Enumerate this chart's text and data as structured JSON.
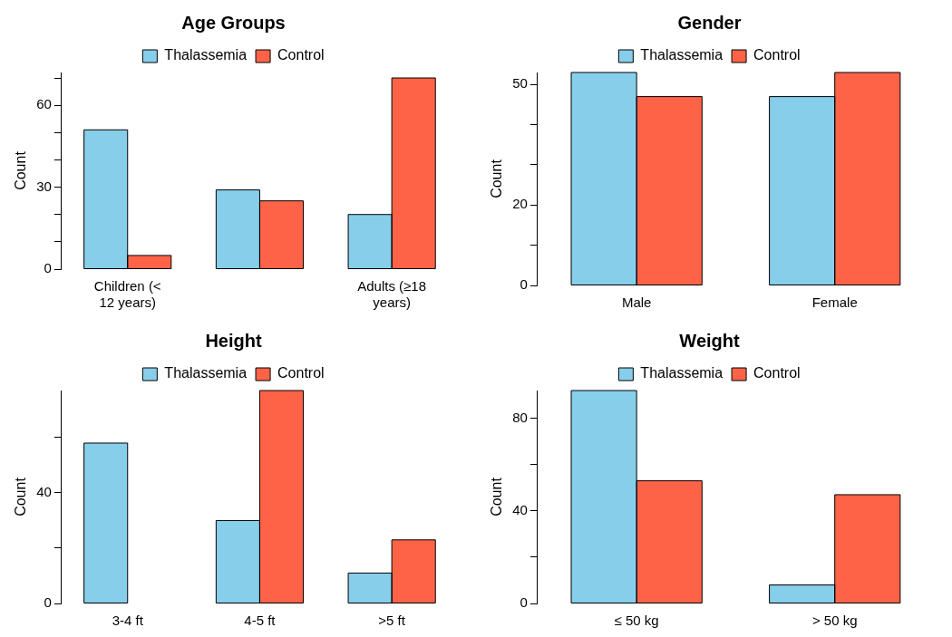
{
  "chart_data": [
    {
      "type": "bar",
      "title": "Age Groups",
      "ylabel": "Count",
      "categories": [
        "Children (< 12 years)",
        null,
        "Adults (≥18 years)"
      ],
      "series": [
        {
          "name": "Thalassemia",
          "color": "#87ceeb",
          "values": [
            51,
            29,
            20
          ]
        },
        {
          "name": "Control",
          "color": "#ff6347",
          "values": [
            5,
            25,
            70
          ]
        }
      ],
      "ylim": [
        0,
        72
      ],
      "yticks": [
        0,
        {
          "value": 10,
          "label": null
        },
        {
          "value": 20,
          "label": null
        },
        30,
        {
          "value": 40,
          "label": null
        },
        {
          "value": 50,
          "label": null
        },
        60,
        {
          "value": 70,
          "label": null
        }
      ],
      "legend": "top"
    },
    {
      "type": "bar",
      "title": "Gender",
      "ylabel": "Count",
      "categories": [
        "Male",
        "Female"
      ],
      "series": [
        {
          "name": "Thalassemia",
          "color": "#87ceeb",
          "values": [
            53,
            47
          ]
        },
        {
          "name": "Control",
          "color": "#ff6347",
          "values": [
            47,
            53
          ]
        }
      ],
      "ylim": [
        0,
        53
      ],
      "yticks": [
        0,
        {
          "value": 10,
          "label": null
        },
        20,
        {
          "value": 30,
          "label": null
        },
        {
          "value": 40,
          "label": null
        },
        50
      ],
      "legend": "top"
    },
    {
      "type": "bar",
      "title": "Height",
      "ylabel": "Count",
      "categories": [
        "3-4 ft",
        "4-5 ft",
        ">5 ft"
      ],
      "series": [
        {
          "name": "Thalassemia",
          "color": "#87ceeb",
          "values": [
            58,
            30,
            11
          ]
        },
        {
          "name": "Control",
          "color": "#ff6347",
          "values": [
            0,
            77,
            23
          ]
        }
      ],
      "ylim": [
        0,
        77
      ],
      "yticks": [
        0,
        {
          "value": 20,
          "label": null
        },
        40,
        {
          "value": 60,
          "label": null
        }
      ],
      "legend": "top"
    },
    {
      "type": "bar",
      "title": "Weight",
      "ylabel": "Count",
      "categories": [
        "≤ 50 kg",
        "> 50 kg"
      ],
      "series": [
        {
          "name": "Thalassemia",
          "color": "#87ceeb",
          "values": [
            92,
            8
          ]
        },
        {
          "name": "Control",
          "color": "#ff6347",
          "values": [
            53,
            47
          ]
        }
      ],
      "ylim": [
        0,
        92
      ],
      "yticks": [
        0,
        {
          "value": 20,
          "label": null
        },
        40,
        {
          "value": 60,
          "label": null
        },
        80
      ],
      "legend": "top"
    }
  ]
}
